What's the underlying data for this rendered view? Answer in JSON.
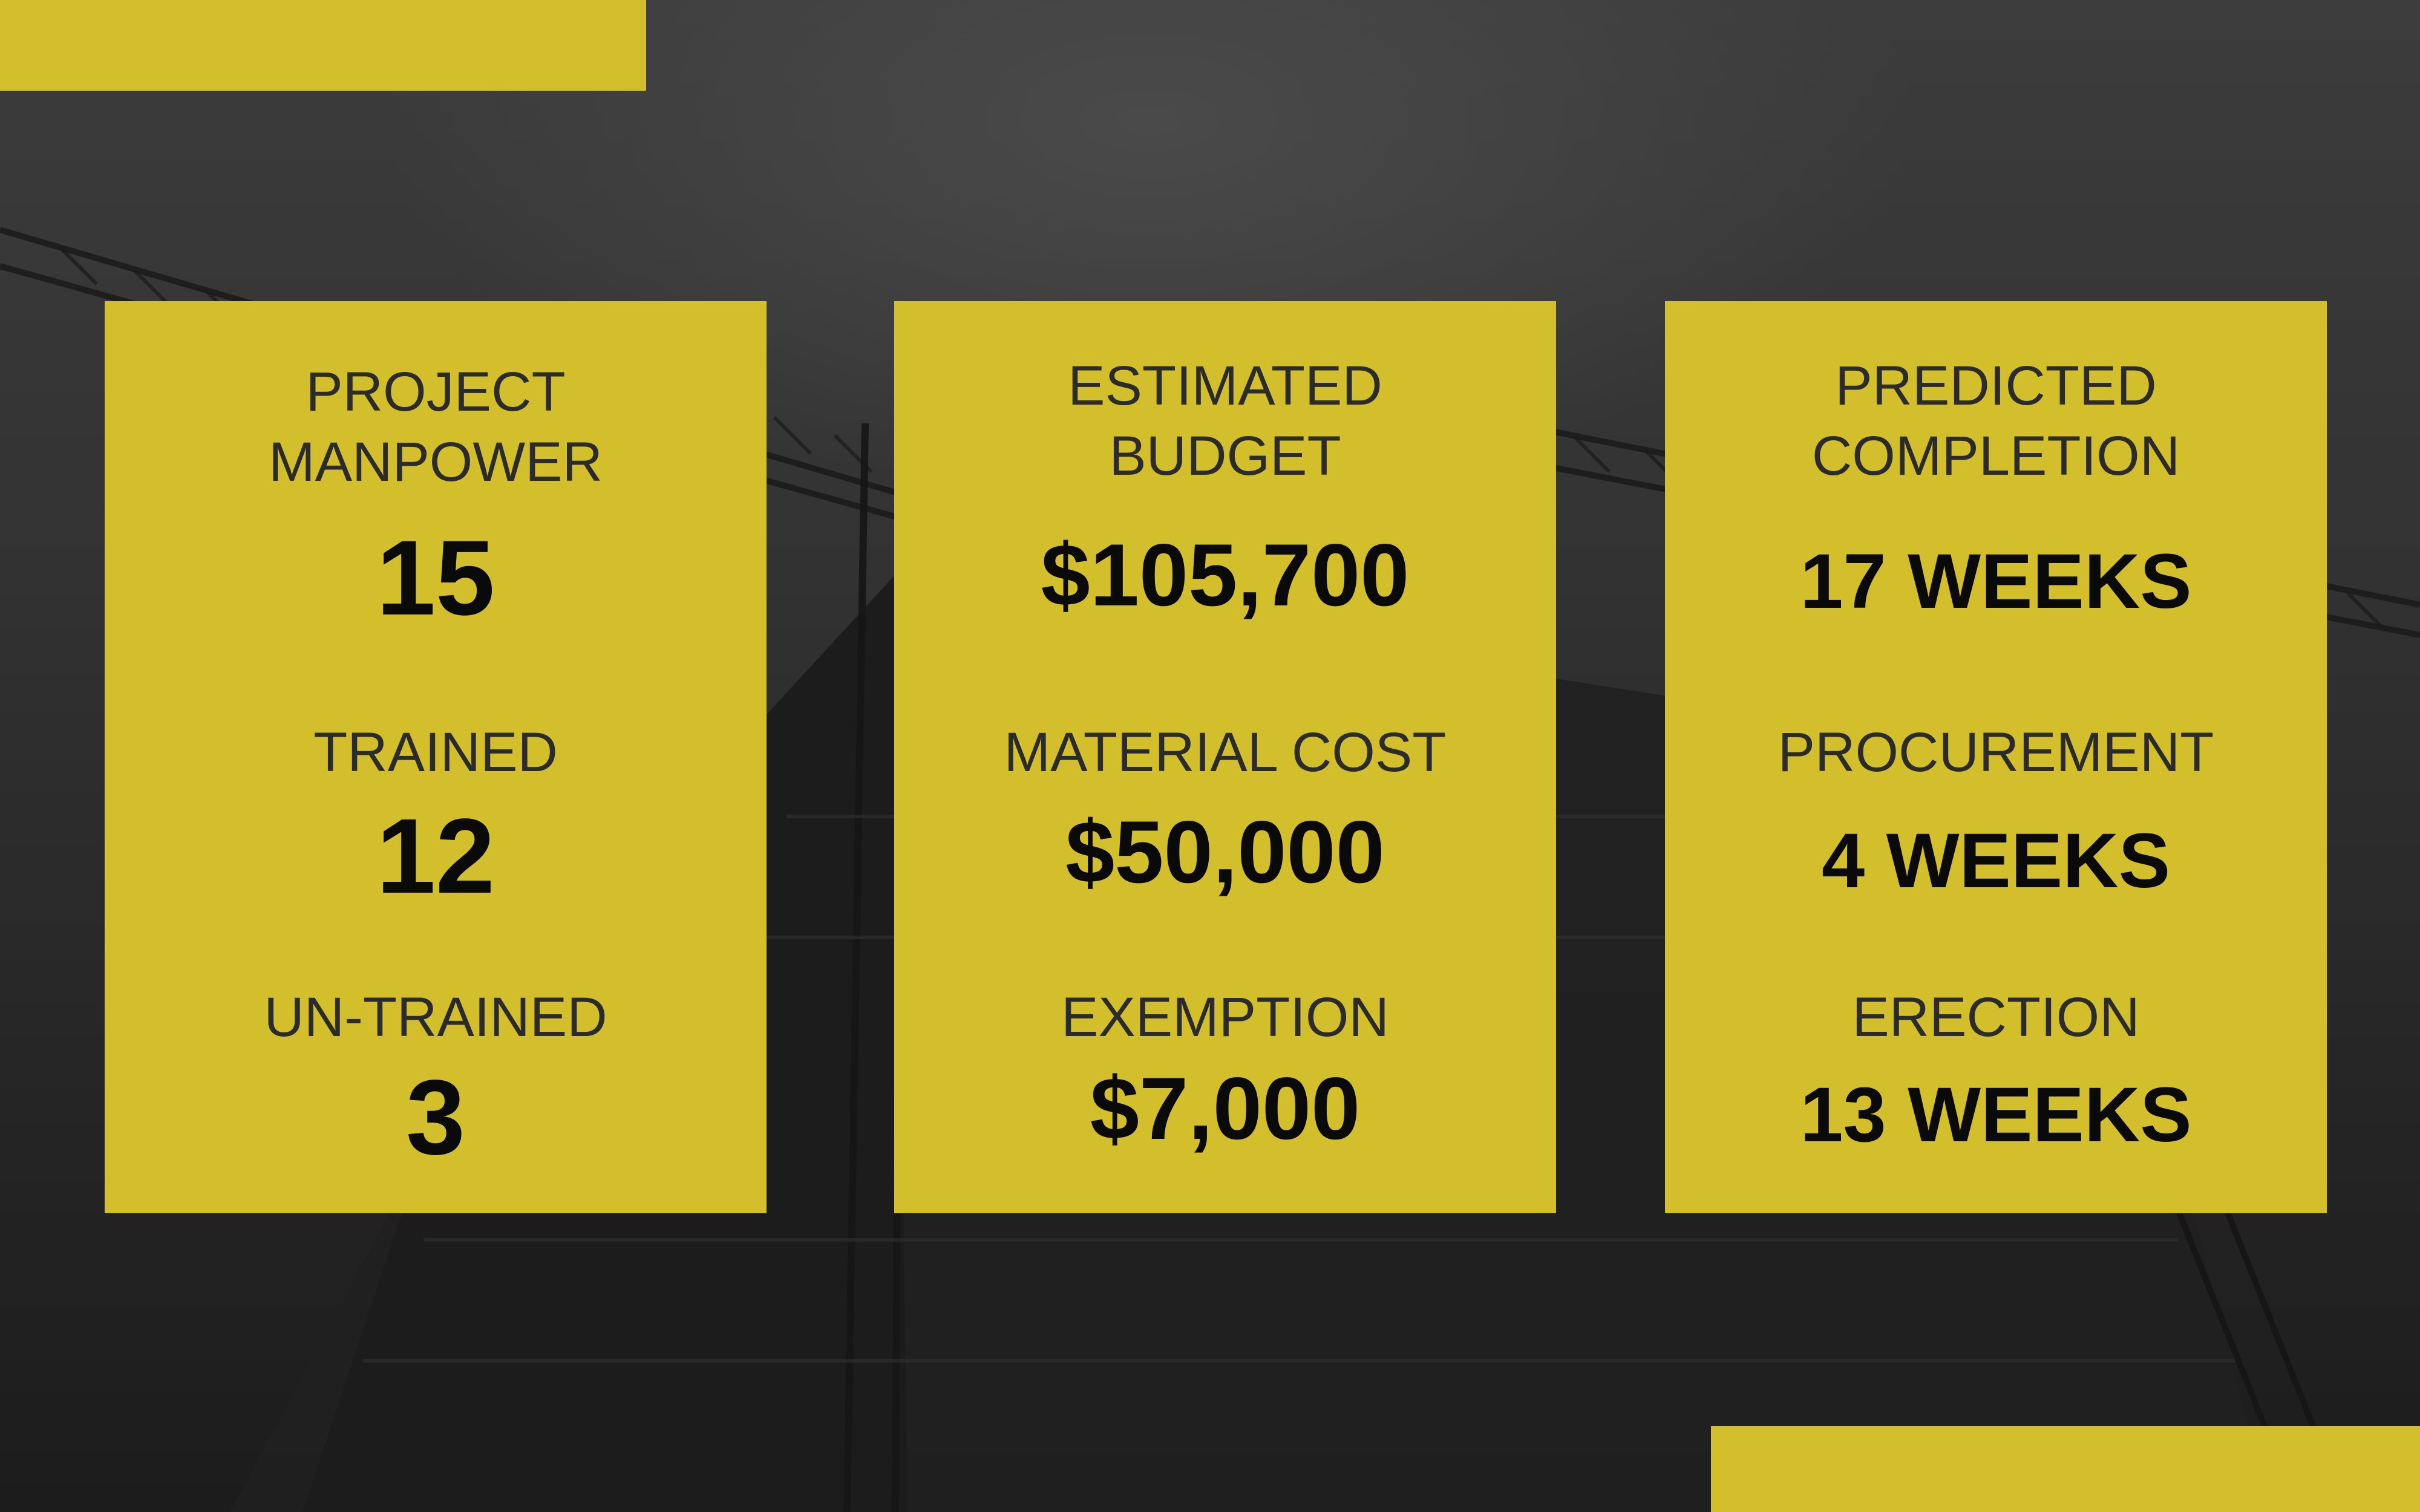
{
  "cards": [
    {
      "items": [
        {
          "label": "PROJECT MANPOWER",
          "value": "15"
        },
        {
          "label": "TRAINED",
          "value": "12"
        },
        {
          "label": "UN-TRAINED",
          "value": "3"
        }
      ]
    },
    {
      "items": [
        {
          "label": "ESTIMATED BUDGET",
          "value": "$105,700"
        },
        {
          "label": "MATERIAL COST",
          "value": "$50,000"
        },
        {
          "label": "EXEMPTION",
          "value": "$7,000"
        }
      ]
    },
    {
      "items": [
        {
          "label": "PREDICTED COMPLETION",
          "value": "17 WEEKS"
        },
        {
          "label": "PROCUREMENT",
          "value": "4 WEEKS"
        },
        {
          "label": "ERECTION",
          "value": "13 WEEKS"
        }
      ]
    }
  ],
  "colors": {
    "accent": "#d3bf2b",
    "background": "#2a2a2a",
    "label_text": "#2b2b2b",
    "value_text": "#0a0a0a"
  }
}
